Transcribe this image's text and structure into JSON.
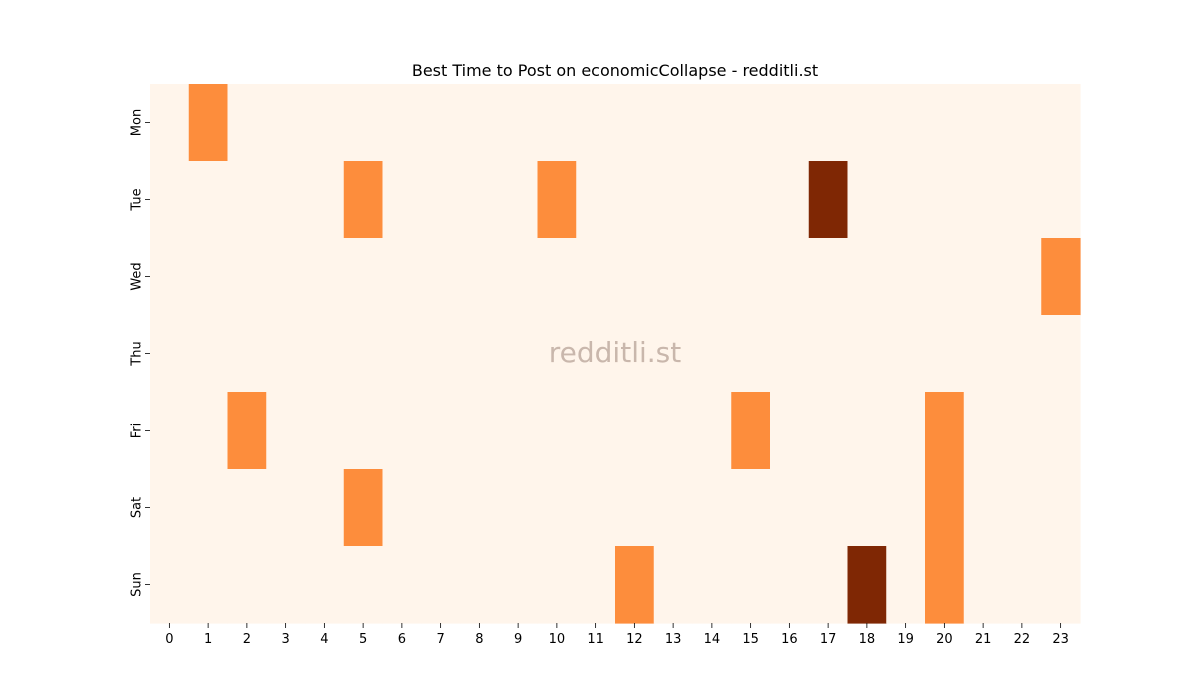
{
  "chart_data": {
    "type": "heatmap",
    "title": "Best Time to Post on economicCollapse - redditli.st",
    "watermark": "redditli.st",
    "xlabel": "",
    "ylabel": "",
    "x": [
      "0",
      "1",
      "2",
      "3",
      "4",
      "5",
      "6",
      "7",
      "8",
      "9",
      "10",
      "11",
      "12",
      "13",
      "14",
      "15",
      "16",
      "17",
      "18",
      "19",
      "20",
      "21",
      "22",
      "23"
    ],
    "y": [
      "Mon",
      "Tue",
      "Wed",
      "Thu",
      "Fri",
      "Sat",
      "Sun"
    ],
    "values": [
      [
        0,
        1,
        0,
        0,
        0,
        0,
        0,
        0,
        0,
        0,
        0,
        0,
        0,
        0,
        0,
        0,
        0,
        0,
        0,
        0,
        0,
        0,
        0,
        0
      ],
      [
        0,
        0,
        0,
        0,
        0,
        1,
        0,
        0,
        0,
        0,
        1,
        0,
        0,
        0,
        0,
        0,
        0,
        2,
        0,
        0,
        0,
        0,
        0,
        0
      ],
      [
        0,
        0,
        0,
        0,
        0,
        0,
        0,
        0,
        0,
        0,
        0,
        0,
        0,
        0,
        0,
        0,
        0,
        0,
        0,
        0,
        0,
        0,
        0,
        1
      ],
      [
        0,
        0,
        0,
        0,
        0,
        0,
        0,
        0,
        0,
        0,
        0,
        0,
        0,
        0,
        0,
        0,
        0,
        0,
        0,
        0,
        0,
        0,
        0,
        0
      ],
      [
        0,
        0,
        1,
        0,
        0,
        0,
        0,
        0,
        0,
        0,
        0,
        0,
        0,
        0,
        0,
        1,
        0,
        0,
        0,
        0,
        1,
        0,
        0,
        0
      ],
      [
        0,
        0,
        0,
        0,
        0,
        1,
        0,
        0,
        0,
        0,
        0,
        0,
        0,
        0,
        0,
        0,
        0,
        0,
        0,
        0,
        1,
        0,
        0,
        0
      ],
      [
        0,
        0,
        0,
        0,
        0,
        0,
        0,
        0,
        0,
        0,
        0,
        0,
        1,
        0,
        0,
        0,
        0,
        0,
        2,
        0,
        1,
        0,
        0,
        0
      ]
    ],
    "color_scale": {
      "0": "#fff5eb",
      "1": "#fd8d3c",
      "2": "#7f2704"
    },
    "grid": false,
    "legend": "none"
  }
}
